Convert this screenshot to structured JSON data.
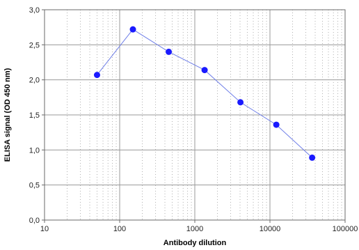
{
  "chart_data": {
    "type": "scatter",
    "xlabel": "Antibody dilution",
    "ylabel": "ELISA signal (OD 450 nm)",
    "x_scale": "log",
    "xlim": [
      10,
      100000
    ],
    "ylim": [
      0,
      3
    ],
    "x_ticks": [
      10,
      100,
      1000,
      10000,
      100000
    ],
    "x_tick_labels": [
      "10",
      "100",
      "1000",
      "10000",
      "100000"
    ],
    "y_ticks": [
      0,
      0.5,
      1,
      1.5,
      2,
      2.5,
      3
    ],
    "y_tick_labels": [
      "0,0",
      "0,5",
      "1,0",
      "1,5",
      "2,0",
      "2,5",
      "3,0"
    ],
    "grid": true,
    "legend": "none",
    "series": [
      {
        "x": [
          50,
          150,
          450,
          1350,
          4050,
          12150,
          36450
        ],
        "y": [
          2.07,
          2.72,
          2.4,
          2.14,
          1.68,
          1.36,
          0.89
        ],
        "color": "#1a1aff",
        "line_color": "#6f7fe8",
        "marker": "circle"
      }
    ]
  },
  "colors": {
    "major_grid": "#9a9a9a",
    "minor_grid": "#b0b0b0",
    "axis": "#6a6a6a"
  }
}
